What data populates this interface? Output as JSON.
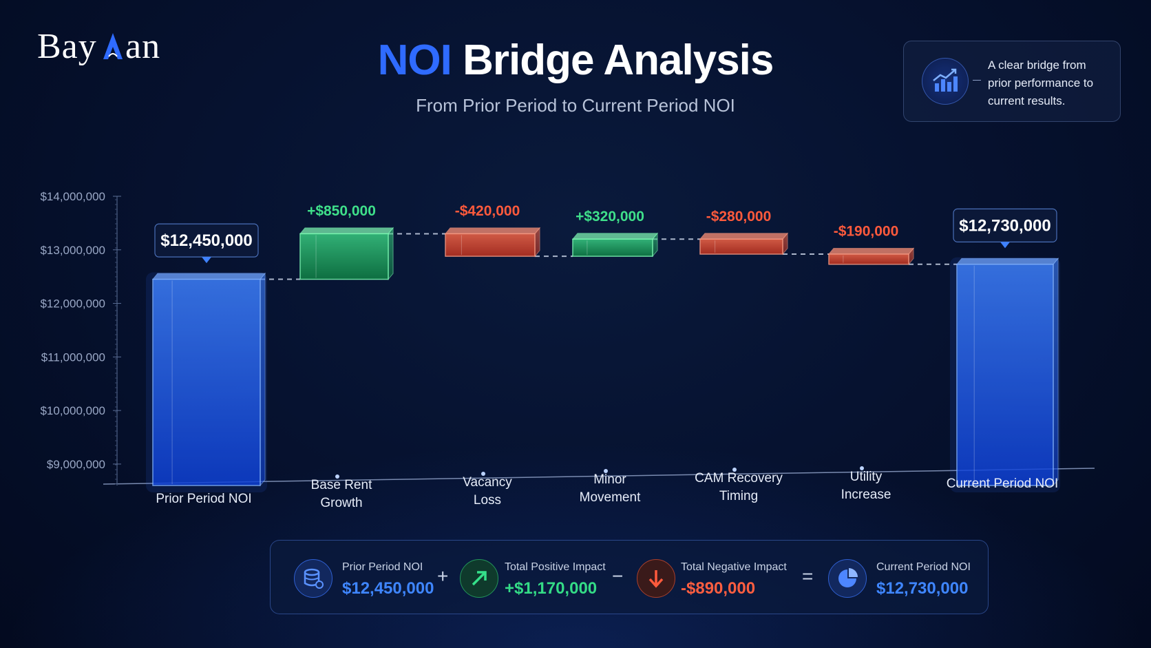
{
  "brand": {
    "logo_text": "BayAan"
  },
  "header": {
    "title_accent": "NOI",
    "title_rest": "Bridge Analysis",
    "subtitle": "From Prior Period to Current Period NOI"
  },
  "info_card": {
    "text": "A clear bridge from prior performance to current results.",
    "icon": "chart-growth-icon"
  },
  "colors": {
    "total": "#2f6bff",
    "increase": "#2fd67a",
    "decrease": "#ff5a3c",
    "background": "#061230"
  },
  "chart_data": {
    "type": "bar",
    "subtype": "waterfall",
    "categories": [
      "Prior Period NOI",
      "Base Rent Growth",
      "Vacancy Loss",
      "Minor Movement",
      "CAM Recovery Timing",
      "Utility Increase",
      "Current Period NOI"
    ],
    "kinds": [
      "total",
      "increase",
      "decrease",
      "increase",
      "decrease",
      "decrease",
      "total"
    ],
    "values": [
      12450000,
      850000,
      -420000,
      320000,
      -280000,
      -190000,
      12730000
    ],
    "data_labels": [
      "$12,450,000",
      "+$850,000",
      "-$420,000",
      "+$320,000",
      "-$280,000",
      "-$190,000",
      "$12,730,000"
    ],
    "y_ticks": [
      "$9,000,000",
      "$10,000,000",
      "$11,000,000",
      "$12,000,000",
      "$13,000,000",
      "$14,000,000"
    ],
    "y_tick_values": [
      9000000,
      10000000,
      11000000,
      12000000,
      13000000,
      14000000
    ],
    "ylim": [
      8600000,
      14000000
    ],
    "grid": false,
    "xlabel": "",
    "ylabel": ""
  },
  "summary": {
    "items": [
      {
        "label": "Prior Period NOI",
        "value": "$12,450,000",
        "icon": "database-icon",
        "color": "#3b7bff"
      },
      {
        "label": "Total Positive Impact",
        "value": "+$1,170,000",
        "icon": "arrow-up-right-icon",
        "color": "#2fd67a"
      },
      {
        "label": "Total Negative Impact",
        "value": "-$890,000",
        "icon": "arrow-down-icon",
        "color": "#ff5a3c"
      },
      {
        "label": "Current Period NOI",
        "value": "$12,730,000",
        "icon": "pie-chart-icon",
        "color": "#3b7bff"
      }
    ],
    "operators": [
      "+",
      "−",
      "="
    ]
  }
}
